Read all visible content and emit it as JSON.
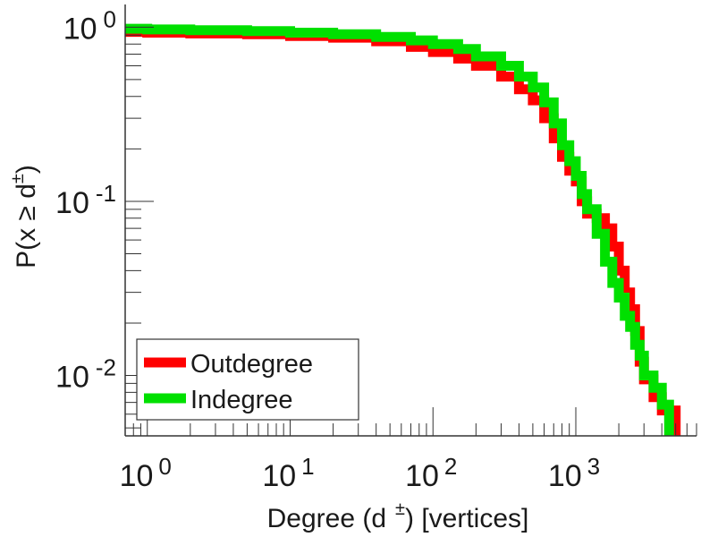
{
  "chart_data": {
    "type": "line",
    "title": "",
    "xlabel": {
      "main": "Degree (d",
      "sup": "±",
      "tail": ") [vertices]"
    },
    "ylabel": {
      "main": "P(x ≥ d",
      "sup": "±",
      "tail": ")"
    },
    "xscale": "log",
    "yscale": "log",
    "xlim": [
      0.7,
      7000
    ],
    "ylim": [
      0.0045,
      1.35
    ],
    "grid": false,
    "legend_position": "bottom-left",
    "x_tick_labels": [
      {
        "base": "10",
        "exp": "0",
        "value": 1
      },
      {
        "base": "10",
        "exp": "1",
        "value": 10
      },
      {
        "base": "10",
        "exp": "2",
        "value": 100
      },
      {
        "base": "10",
        "exp": "3",
        "value": 1000
      }
    ],
    "y_tick_labels": [
      {
        "base": "10",
        "exp": "0",
        "value": 1
      },
      {
        "base": "10",
        "exp": "-1",
        "value": 0.1
      },
      {
        "base": "10",
        "exp": "-2",
        "value": 0.01
      }
    ],
    "series": [
      {
        "name": "Outdegree",
        "color": "#ff0000",
        "x": [
          0.7,
          1,
          2,
          5,
          10,
          20,
          40,
          70,
          100,
          150,
          200,
          300,
          400,
          500,
          600,
          700,
          800,
          900,
          1000,
          1100,
          1200,
          1400,
          1600,
          1800,
          2000,
          2200,
          2400,
          2600,
          2800,
          3000,
          3500,
          4000,
          4500,
          5000
        ],
        "y": [
          0.94,
          0.93,
          0.92,
          0.91,
          0.89,
          0.87,
          0.83,
          0.77,
          0.72,
          0.66,
          0.6,
          0.52,
          0.44,
          0.38,
          0.3,
          0.23,
          0.18,
          0.15,
          0.13,
          0.1,
          0.085,
          0.08,
          0.07,
          0.055,
          0.04,
          0.03,
          0.024,
          0.018,
          0.012,
          0.0095,
          0.0075,
          0.0063,
          0.0063,
          0.005
        ]
      },
      {
        "name": "Indegree",
        "color": "#00e000",
        "x": [
          0.7,
          1,
          2,
          5,
          10,
          20,
          40,
          70,
          100,
          150,
          200,
          300,
          400,
          500,
          600,
          700,
          800,
          900,
          1000,
          1100,
          1200,
          1400,
          1600,
          1800,
          2000,
          2200,
          2400,
          2600,
          2800,
          3000,
          3500,
          4000,
          4500
        ],
        "y": [
          0.98,
          0.97,
          0.96,
          0.95,
          0.93,
          0.91,
          0.88,
          0.84,
          0.8,
          0.75,
          0.68,
          0.6,
          0.52,
          0.45,
          0.37,
          0.28,
          0.21,
          0.17,
          0.14,
          0.11,
          0.09,
          0.065,
          0.045,
          0.034,
          0.028,
          0.022,
          0.019,
          0.015,
          0.013,
          0.01,
          0.0085,
          0.0068,
          0.005
        ]
      }
    ]
  }
}
